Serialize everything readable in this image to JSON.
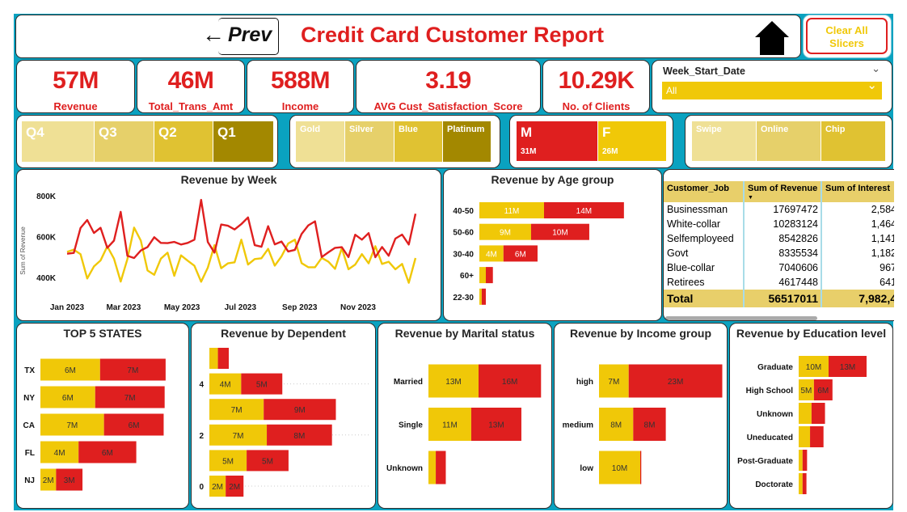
{
  "header": {
    "prev_label": "Prev",
    "title": "Credit Card Customer Report",
    "home_icon": "home-icon",
    "clear_label": "Clear All Slicers"
  },
  "colors": {
    "accent_red": "#df1f1f",
    "accent_yellow": "#f0c808",
    "background": "#0aa2c0"
  },
  "kpis": [
    {
      "value": "57M",
      "label": "Revenue"
    },
    {
      "value": "46M",
      "label": "Total_Trans_Amt"
    },
    {
      "value": "588M",
      "label": "Income"
    },
    {
      "value": "3.19",
      "label": "AVG Cust_Satisfaction_Score"
    },
    {
      "value": "10.29K",
      "label": "No. of Clients"
    }
  ],
  "date_slicer": {
    "label": "Week_Start_Date",
    "value": "All"
  },
  "quarter_slicer": {
    "items": [
      "Q4",
      "Q3",
      "Q2",
      "Q1"
    ],
    "colors": [
      "#efe095",
      "#e6d06a",
      "#e0c232",
      "#a38800"
    ]
  },
  "card_slicer": {
    "items": [
      "Gold",
      "Silver",
      "Blue",
      "Platinum"
    ],
    "colors": [
      "#efe095",
      "#e6d06a",
      "#e0c232",
      "#a38800"
    ]
  },
  "gender_slicer": {
    "items": [
      {
        "label": "M",
        "value": "31M",
        "color": "#df1f1f"
      },
      {
        "label": "F",
        "value": "26M",
        "color": "#f0c808"
      }
    ]
  },
  "chip_slicer": {
    "items": [
      "Swipe",
      "Online",
      "Chip"
    ],
    "colors": [
      "#efe095",
      "#e6d06a",
      "#e0c232"
    ]
  },
  "table": {
    "columns": [
      "Customer_Job",
      "Sum of Revenue",
      "Sum of Interest"
    ],
    "rows": [
      [
        "Businessman",
        "17697472",
        "2,584"
      ],
      [
        "White-collar",
        "10283124",
        "1,464"
      ],
      [
        "Selfemployeed",
        "8542826",
        "1,141"
      ],
      [
        "Govt",
        "8335534",
        "1,182"
      ],
      [
        "Blue-collar",
        "7040606",
        "967"
      ],
      [
        "Retirees",
        "4617448",
        "641"
      ]
    ],
    "total": [
      "Total",
      "56517011",
      "7,982,4"
    ]
  },
  "chart_data": [
    {
      "type": "line",
      "title": "Revenue by Week",
      "ylabel": "Sum of Revenue",
      "xlabel": "",
      "ylim": [
        400000,
        800000
      ],
      "yticks": [
        "800K",
        "600K",
        "400K"
      ],
      "xticks": [
        "Jan 2023",
        "Mar 2023",
        "May 2023",
        "Jul 2023",
        "Sep 2023",
        "Nov 2023"
      ],
      "x": [
        "2023-01-01",
        "2023-01-08",
        "2023-01-15",
        "2023-01-22",
        "2023-01-29",
        "2023-02-05",
        "2023-02-12",
        "2023-02-19",
        "2023-02-26",
        "2023-03-05",
        "2023-03-12",
        "2023-03-19",
        "2023-03-26",
        "2023-04-02",
        "2023-04-09",
        "2023-04-16",
        "2023-04-23",
        "2023-04-30",
        "2023-05-07",
        "2023-05-14",
        "2023-05-21",
        "2023-05-28",
        "2023-06-04",
        "2023-06-11",
        "2023-06-18",
        "2023-06-25",
        "2023-07-02",
        "2023-07-09",
        "2023-07-16",
        "2023-07-23",
        "2023-07-30",
        "2023-08-06",
        "2023-08-13",
        "2023-08-20",
        "2023-08-27",
        "2023-09-03",
        "2023-09-10",
        "2023-09-17",
        "2023-09-24",
        "2023-10-01",
        "2023-10-08",
        "2023-10-15",
        "2023-10-22",
        "2023-10-29",
        "2023-11-05",
        "2023-11-12",
        "2023-11-19",
        "2023-11-26",
        "2023-12-03",
        "2023-12-10",
        "2023-12-17",
        "2023-12-24",
        "2023-12-31"
      ],
      "series": [
        {
          "color": "#df1f1f",
          "values": [
            516000,
            520000,
            642000,
            681000,
            618000,
            643000,
            545000,
            580000,
            721000,
            506000,
            495000,
            532000,
            549000,
            597000,
            569000,
            568000,
            574000,
            561000,
            569000,
            585000,
            780000,
            573000,
            521000,
            659000,
            653000,
            635000,
            661000,
            694000,
            558000,
            550000,
            651000,
            562000,
            576000,
            527000,
            535000,
            613000,
            655000,
            675000,
            500000,
            523000,
            545000,
            548000,
            500000,
            609000,
            585000,
            617000,
            499000,
            549000,
            506000,
            590000,
            610000,
            561000,
            712000
          ]
        },
        {
          "color": "#f0c808",
          "values": [
            525000,
            536000,
            514000,
            395000,
            454000,
            483000,
            552000,
            492000,
            380000,
            490000,
            644000,
            580000,
            434000,
            413000,
            492000,
            521000,
            408000,
            508000,
            482000,
            457000,
            379000,
            448000,
            558000,
            445000,
            469000,
            474000,
            585000,
            463000,
            490000,
            494000,
            540000,
            458000,
            503000,
            566000,
            585000,
            470000,
            450000,
            450000,
            496000,
            477000,
            442000,
            543000,
            440000,
            463000,
            514000,
            469000,
            553000,
            466000,
            477000,
            440000,
            466000,
            374000,
            495000
          ]
        }
      ],
      "grid": false,
      "legend": "none"
    },
    {
      "type": "bar",
      "orientation": "horizontal",
      "stacked": true,
      "title": "Revenue by Age group",
      "unit": "M",
      "categories": [
        "40-50",
        "50-60",
        "30-40",
        "60+",
        "22-30"
      ],
      "series": [
        {
          "color": "#f0c808",
          "values": [
            11,
            8.8,
            4.1,
            1.1,
            0.4
          ],
          "labels": [
            "11M",
            "9M",
            "4M",
            "",
            ""
          ]
        },
        {
          "color": "#df1f1f",
          "values": [
            13.6,
            9.9,
            5.8,
            1.2,
            0.7
          ],
          "labels": [
            "14M",
            "10M",
            "6M",
            "",
            ""
          ]
        }
      ]
    },
    {
      "type": "bar",
      "orientation": "horizontal",
      "stacked": true,
      "title": "TOP 5 STATES",
      "unit": "M",
      "categories": [
        "TX",
        "NY",
        "CA",
        "FL",
        "NJ"
      ],
      "series": [
        {
          "color": "#f0c808",
          "values": [
            6.1,
            5.6,
            6.5,
            3.9,
            1.6
          ],
          "labels": [
            "6M",
            "6M",
            "7M",
            "4M",
            "2M"
          ]
        },
        {
          "color": "#df1f1f",
          "values": [
            6.7,
            7.1,
            6.1,
            5.9,
            2.7
          ],
          "labels": [
            "7M",
            "7M",
            "6M",
            "6M",
            "3M"
          ]
        }
      ]
    },
    {
      "type": "bar",
      "orientation": "horizontal",
      "stacked": true,
      "title": "Revenue by Dependent",
      "unit": "M",
      "categories": [
        "",
        "4",
        "",
        "2",
        "",
        "0"
      ],
      "series": [
        {
          "color": "#f0c808",
          "values": [
            1.1,
            4.1,
            7.0,
            7.4,
            4.8,
            2.1
          ],
          "labels": [
            "",
            "4M",
            "7M",
            "7M",
            "5M",
            "2M"
          ]
        },
        {
          "color": "#df1f1f",
          "values": [
            1.4,
            5.3,
            9.3,
            8.4,
            5.4,
            2.3
          ],
          "labels": [
            "",
            "5M",
            "9M",
            "8M",
            "5M",
            "2M"
          ]
        }
      ]
    },
    {
      "type": "bar",
      "orientation": "horizontal",
      "stacked": true,
      "title": "Revenue by Marital status",
      "unit": "M",
      "categories": [
        "Married",
        "Single",
        "Unknown"
      ],
      "series": [
        {
          "color": "#f0c808",
          "values": [
            13,
            11.1,
            1.9
          ],
          "labels": [
            "13M",
            "11M",
            ""
          ]
        },
        {
          "color": "#df1f1f",
          "values": [
            16.2,
            13,
            2.6
          ],
          "labels": [
            "16M",
            "13M",
            ""
          ]
        }
      ]
    },
    {
      "type": "bar",
      "orientation": "horizontal",
      "stacked": true,
      "title": "Revenue by Income group",
      "unit": "M",
      "categories": [
        "high",
        "medium",
        "low"
      ],
      "series": [
        {
          "color": "#f0c808",
          "values": [
            7.2,
            8.3,
            10
          ],
          "labels": [
            "7M",
            "8M",
            "10M"
          ]
        },
        {
          "color": "#df1f1f",
          "values": [
            22.7,
            7.9,
            0.25
          ],
          "labels": [
            "23M",
            "8M",
            ""
          ]
        }
      ]
    },
    {
      "type": "bar",
      "orientation": "horizontal",
      "stacked": true,
      "title": "Revenue by Education level",
      "unit": "M",
      "categories": [
        "Graduate",
        "High School",
        "Unknown",
        "Uneducated",
        "Post-Graduate",
        "Doctorate"
      ],
      "series": [
        {
          "color": "#f0c808",
          "values": [
            10,
            5.1,
            4.3,
            3.8,
            1.3,
            1.3
          ],
          "labels": [
            "10M",
            "5M",
            "",
            "",
            "",
            ""
          ]
        },
        {
          "color": "#df1f1f",
          "values": [
            12.7,
            6.2,
            4.5,
            4.5,
            1.5,
            1.3
          ],
          "labels": [
            "13M",
            "6M",
            "",
            "",
            "",
            ""
          ]
        }
      ]
    }
  ]
}
